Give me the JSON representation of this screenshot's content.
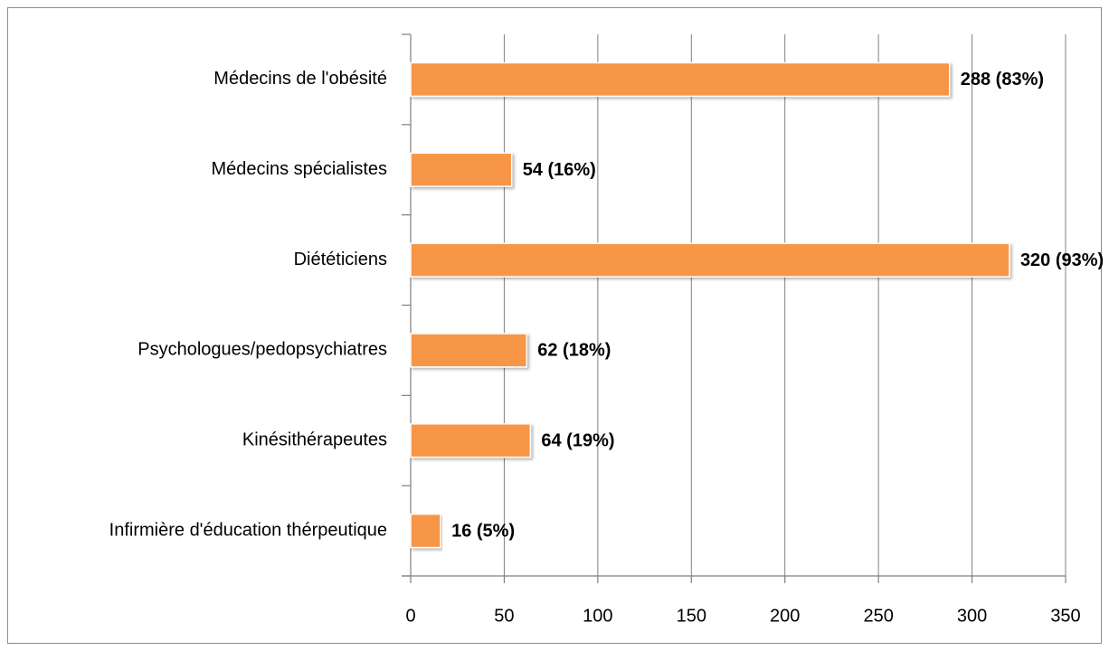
{
  "chart_data": {
    "type": "bar",
    "orientation": "horizontal",
    "categories": [
      "Médecins de l'obésité",
      "Médecins spécialistes",
      "Diététiciens",
      "Psychologues/pedopsychiatres",
      "Kinésithérapeutes",
      "Infirmière d'éducation thérpeutique"
    ],
    "values": [
      288,
      54,
      320,
      62,
      64,
      16
    ],
    "value_labels": [
      "288 (83%)",
      "54 (16%)",
      "320 (93%)",
      "62 (18%)",
      "64 (19%)",
      "16 (5%)"
    ],
    "color": "#f79646",
    "xlim": [
      0,
      350
    ],
    "xticks": [
      0,
      50,
      100,
      150,
      200,
      250,
      300,
      350
    ],
    "grid": true
  }
}
